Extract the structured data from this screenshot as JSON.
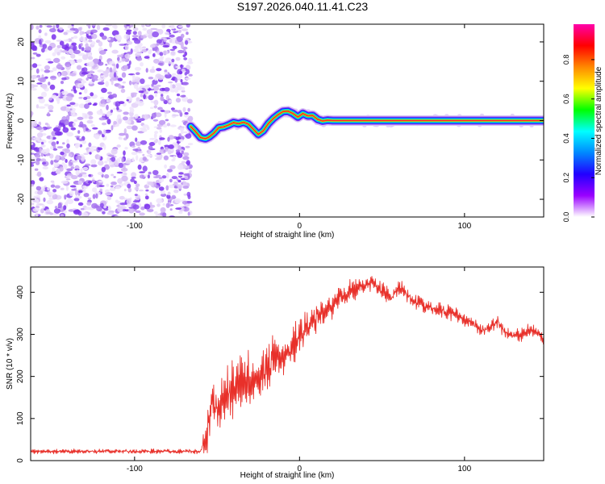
{
  "title": "S197.2026.040.11.41.C23",
  "chart_data": [
    {
      "type": "heatmap",
      "xlabel": "Height of straight line (km)",
      "ylabel": "Frequency (Hz)",
      "xlim": [
        -163,
        148
      ],
      "ylim": [
        -24.5,
        24.5
      ],
      "x_ticks": [
        -100,
        0,
        100
      ],
      "y_ticks": [
        -20,
        -10,
        0,
        10,
        20
      ],
      "noise_region_x": [
        -163,
        -66
      ],
      "ridge": {
        "x": [
          -66,
          -63,
          -60,
          -57,
          -55,
          -52,
          -49,
          -46,
          -43,
          -40,
          -37,
          -34,
          -31,
          -28,
          -25,
          -22,
          -19,
          -16,
          -13,
          -10,
          -7,
          -4,
          -1,
          2,
          5,
          8,
          11,
          14,
          17,
          20,
          40,
          60,
          80,
          100,
          120,
          148
        ],
        "freq": [
          -1.5,
          -2.8,
          -4.3,
          -4.6,
          -4.2,
          -3.2,
          -1.8,
          -1.6,
          -1.1,
          -0.5,
          -0.8,
          -0.4,
          -0.9,
          -2.2,
          -3.5,
          -2.6,
          -0.8,
          0.5,
          1.5,
          2.3,
          2.4,
          1.8,
          0.9,
          1.8,
          1.2,
          1.3,
          0.3,
          -0.1,
          0.1,
          0.0,
          0.0,
          0.0,
          0.0,
          0.0,
          0.0,
          0.0
        ]
      },
      "colorbar": {
        "label": "Normalized spectral amplitude",
        "ticks": [
          "0.0",
          "0.2",
          "0.4",
          "0.6",
          "0.8"
        ],
        "range": [
          0,
          0.98
        ],
        "colors": [
          "#ffffff",
          "#9a00ff",
          "#2200ff",
          "#0088ff",
          "#00ffff",
          "#00ff00",
          "#ffff00",
          "#ff8800",
          "#ff0000",
          "#ff00aa"
        ]
      }
    },
    {
      "type": "line",
      "xlabel": "Height of straight line (km)",
      "ylabel": "SNR (10 * v/v)",
      "xlim": [
        -163,
        148
      ],
      "ylim": [
        0,
        460
      ],
      "x_ticks": [
        -100,
        0,
        100
      ],
      "y_ticks": [
        0,
        100,
        200,
        300,
        400
      ],
      "color": "#e8302a",
      "trend": {
        "x": [
          -163,
          -60,
          -56,
          -53,
          -50,
          -45,
          -40,
          -35,
          -30,
          -25,
          -20,
          -15,
          -10,
          -5,
          0,
          5,
          10,
          15,
          20,
          25,
          30,
          35,
          40,
          45,
          50,
          55,
          60,
          65,
          70,
          75,
          80,
          85,
          90,
          95,
          100,
          105,
          110,
          115,
          120,
          125,
          130,
          135,
          140,
          145,
          148
        ],
        "snr": [
          22,
          22,
          60,
          150,
          120,
          150,
          170,
          180,
          200,
          200,
          215,
          250,
          250,
          265,
          290,
          320,
          340,
          355,
          365,
          385,
          400,
          410,
          415,
          420,
          405,
          385,
          410,
          395,
          380,
          370,
          365,
          360,
          355,
          345,
          335,
          325,
          310,
          315,
          330,
          305,
          295,
          300,
          310,
          300,
          290
        ]
      },
      "noise_amplitude": {
        "x": [
          -163,
          -60,
          -56,
          -50,
          -40,
          -30,
          -20,
          -10,
          0,
          20,
          40,
          60,
          90,
          120,
          148
        ],
        "amp": [
          5,
          5,
          45,
          60,
          60,
          55,
          55,
          45,
          40,
          30,
          20,
          18,
          16,
          15,
          15
        ]
      }
    }
  ]
}
